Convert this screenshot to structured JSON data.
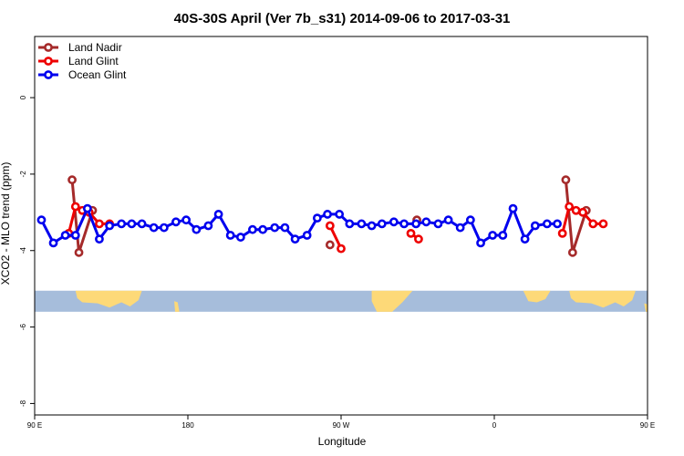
{
  "chart_data": {
    "type": "line",
    "title": "40S-30S April (Ver 7b_s31)   2014-09-06 to 2017-03-31",
    "xlabel": "Longitude",
    "ylabel": "XCO2 - MLO trend (ppm)",
    "xlim": [
      90,
      450
    ],
    "ylim": [
      -8.3,
      1.6
    ],
    "x_ticks": [
      {
        "value": 90,
        "label": "90 E"
      },
      {
        "value": 180,
        "label": "180"
      },
      {
        "value": 270,
        "label": "90 W"
      },
      {
        "value": 360,
        "label": "0"
      },
      {
        "value": 450,
        "label": "90 E"
      },
      {
        "value": 540,
        "label": "180"
      }
    ],
    "y_ticks": [
      {
        "value": 0,
        "label": "0"
      },
      {
        "value": -2,
        "label": "-2"
      },
      {
        "value": -4,
        "label": "-4"
      },
      {
        "value": -6,
        "label": "-6"
      },
      {
        "value": -8,
        "label": "-8"
      }
    ],
    "legend_position": "top-left",
    "grid": false,
    "map_strip": {
      "y_top": -5.05,
      "y_bottom": -5.6,
      "ocean_color": "#a6bddb",
      "land_color": "#fdd978"
    },
    "series": [
      {
        "name": "Land Nadir",
        "color": "#a52a2a",
        "segments": [
          [
            [
              112,
              -2.15
            ],
            [
              116,
              -4.05
            ],
            [
              124,
              -2.95
            ]
          ],
          [
            [
              263.5,
              -3.85
            ]
          ],
          [
            [
              314.5,
              -3.2
            ]
          ],
          [
            [
              402,
              -2.15
            ],
            [
              406,
              -4.05
            ],
            [
              414,
              -2.95
            ]
          ]
        ]
      },
      {
        "name": "Land Glint",
        "color": "#ee0000",
        "segments": [
          [
            [
              110,
              -3.55
            ],
            [
              114,
              -2.85
            ],
            [
              118,
              -2.95
            ],
            [
              122,
              -3.0
            ],
            [
              128,
              -3.3
            ],
            [
              134,
              -3.3
            ]
          ],
          [
            [
              263.5,
              -3.35
            ],
            [
              270,
              -3.95
            ]
          ],
          [
            [
              311,
              -3.55
            ],
            [
              315.5,
              -3.7
            ]
          ],
          [
            [
              400,
              -3.55
            ],
            [
              404,
              -2.85
            ],
            [
              408,
              -2.95
            ],
            [
              412,
              -3.0
            ],
            [
              418,
              -3.3
            ],
            [
              424,
              -3.3
            ]
          ]
        ]
      },
      {
        "name": "Ocean Glint",
        "color": "#0000ee",
        "segments": [
          [
            [
              94,
              -3.2
            ],
            [
              101,
              -3.8
            ],
            [
              108,
              -3.6
            ],
            [
              114,
              -3.6
            ],
            [
              121,
              -2.9
            ],
            [
              128,
              -3.7
            ],
            [
              134,
              -3.35
            ],
            [
              141,
              -3.3
            ],
            [
              147,
              -3.3
            ],
            [
              153,
              -3.3
            ],
            [
              160,
              -3.4
            ],
            [
              166,
              -3.4
            ],
            [
              173,
              -3.25
            ],
            [
              179,
              -3.2
            ],
            [
              185,
              -3.45
            ],
            [
              192,
              -3.35
            ],
            [
              198,
              -3.05
            ],
            [
              205,
              -3.6
            ],
            [
              211,
              -3.65
            ],
            [
              218,
              -3.45
            ],
            [
              224,
              -3.45
            ],
            [
              231,
              -3.4
            ],
            [
              237,
              -3.4
            ],
            [
              243,
              -3.7
            ],
            [
              250,
              -3.6
            ],
            [
              256,
              -3.15
            ],
            [
              262,
              -3.05
            ],
            [
              269,
              -3.05
            ],
            [
              275,
              -3.3
            ],
            [
              282,
              -3.3
            ],
            [
              288,
              -3.35
            ],
            [
              294,
              -3.3
            ],
            [
              301,
              -3.25
            ],
            [
              307,
              -3.3
            ],
            [
              314,
              -3.3
            ],
            [
              320,
              -3.25
            ],
            [
              327,
              -3.3
            ],
            [
              333,
              -3.2
            ],
            [
              340,
              -3.4
            ],
            [
              346,
              -3.2
            ],
            [
              352,
              -3.8
            ],
            [
              359,
              -3.6
            ],
            [
              365,
              -3.6
            ],
            [
              371,
              -2.9
            ],
            [
              378,
              -3.7
            ],
            [
              384,
              -3.35
            ],
            [
              391,
              -3.3
            ],
            [
              397,
              -3.3
            ]
          ]
        ]
      }
    ]
  }
}
